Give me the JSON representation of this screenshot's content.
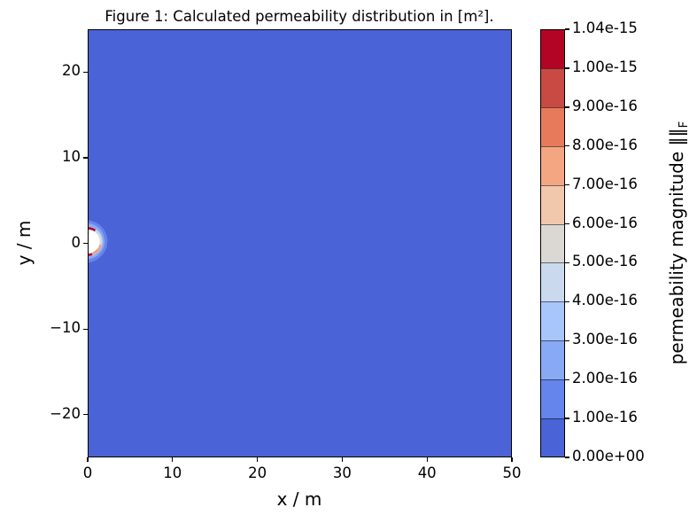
{
  "figure": {
    "title": "Figure 1: Calculated permeability distribution in [m²]."
  },
  "axes": {
    "xlabel": "x / m",
    "ylabel": "y / m",
    "x_tick_labels": [
      "0",
      "10",
      "20",
      "30",
      "40",
      "50"
    ],
    "y_tick_labels": [
      "20",
      "10",
      "0",
      "−10",
      "−20"
    ]
  },
  "colorbar": {
    "label": "permeability magnitude ‖‖",
    "label_subscript": "F",
    "tick_labels_top_to_bottom": [
      "1.04e-15",
      "1.00e-15",
      "9.00e-16",
      "8.00e-16",
      "7.00e-16",
      "6.00e-16",
      "5.00e-16",
      "4.00e-16",
      "3.00e-16",
      "2.00e-16",
      "1.00e-16",
      "0.00e+00"
    ],
    "segment_colors_bottom_to_top": [
      "#4A63D6",
      "#6585EC",
      "#88A9F4",
      "#A9C6FB",
      "#CBD9EE",
      "#DBD8D3",
      "#F2C8AC",
      "#F4A683",
      "#E77A5B",
      "#C84A42",
      "#B40426"
    ]
  },
  "chart_data": {
    "type": "heatmap",
    "title": "Figure 1: Calculated permeability distribution in [m²].",
    "xlabel": "x / m",
    "ylabel": "y / m",
    "xlim": [
      0,
      50
    ],
    "ylim": [
      -25,
      25
    ],
    "x_ticks": [
      0,
      10,
      20,
      30,
      40,
      50
    ],
    "y_ticks": [
      20,
      10,
      0,
      -10,
      -20
    ],
    "colorbar_label": "permeability magnitude ‖‖F (Frobenius norm)",
    "colormap": "coolwarm, discrete (11 uniform bins)",
    "levels": [
      0,
      1e-16,
      2e-16,
      3e-16,
      4e-16,
      5e-16,
      6e-16,
      7e-16,
      8e-16,
      9e-16,
      1e-15,
      1.04e-15
    ],
    "bin_colors_low_to_high": [
      "#4A63D6",
      "#6585EC",
      "#88A9F4",
      "#A9C6FB",
      "#CBD9EE",
      "#DBD8D3",
      "#F2C8AC",
      "#F4A683",
      "#E77A5B",
      "#C84A42",
      "#B40426"
    ],
    "field": "Uniform background permeability in lowest bin [0, 1.00e-16] (dark blue) over entire 0–50 m × −25–25 m domain",
    "anomaly": {
      "description": "White half-disk (excluded well region) on left boundary at x=0, y≈0, radius ≈ 1.6 m; rimmed by thin high-permeability arcs (dark red ≈ 1.0e-15 at top and bottom near the boundary, salmon/peach ≈ 7–8e-16 along lower arc, pale gray-blue on right) surrounded by a jagged light-blue transition fringe ≈ 2–4e-16",
      "center_xy_m": [
        0,
        0
      ],
      "radius_m": 1.6
    },
    "grid": false,
    "legend": "colorbar on right"
  }
}
